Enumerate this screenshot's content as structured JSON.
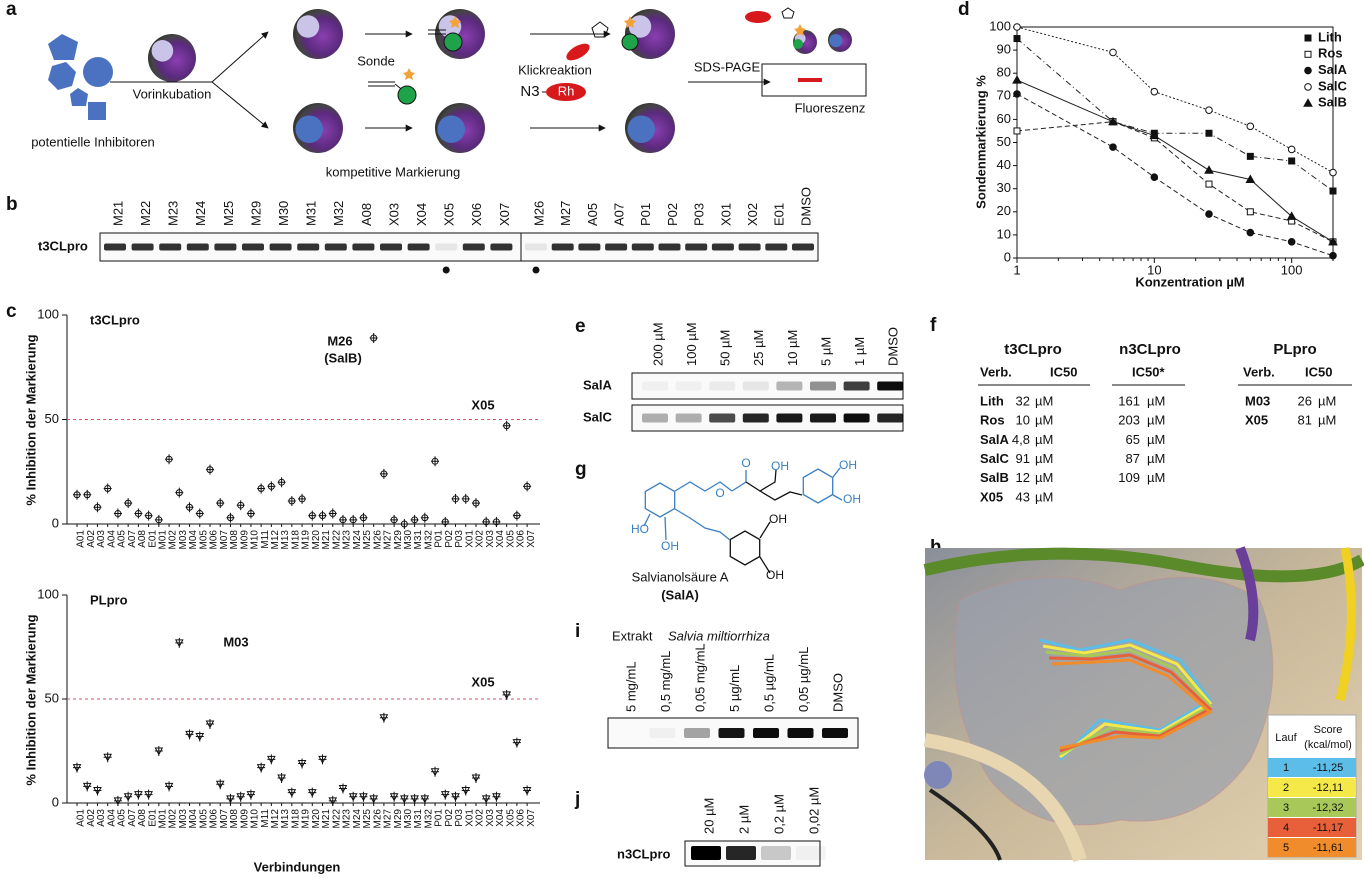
{
  "panels": {
    "a": {
      "letter": "a",
      "inhibitors": "potentielle Inhibitoren",
      "preincubation": "Vorinkubation",
      "probe": "Sonde",
      "click": "Klickreaktion",
      "azide": "N3",
      "dye": "Rh",
      "sds": "SDS-PAGE",
      "fluorescence": "Fluoreszenz",
      "competitive": "kompetitive Markierung"
    },
    "b": {
      "letter": "b",
      "protein": "t3CLpro",
      "lanes": [
        "M21",
        "M22",
        "M23",
        "M24",
        "M25",
        "M29",
        "M30",
        "M31",
        "M32",
        "A08",
        "X03",
        "X04",
        "X05",
        "X06",
        "X07",
        "M26",
        "M27",
        "A05",
        "A07",
        "P01",
        "P02",
        "P03",
        "X01",
        "X02",
        "E01",
        "DMSO"
      ]
    },
    "c": {
      "letter": "c",
      "ylabel": "% Inhibition der Markierung",
      "xlabel": "Verbindungen"
    },
    "d": {
      "letter": "d"
    },
    "e": {
      "letter": "e",
      "lanes": [
        "200 µM",
        "100 µM",
        "50 µM",
        "25 µM",
        "10 µM",
        "5 µM",
        "1 µM",
        "DMSO"
      ],
      "rows": [
        "SalA",
        "SalC"
      ]
    },
    "f": {
      "letter": "f",
      "tables": [
        {
          "title": "t3CLpro",
          "headers": [
            "Verb.",
            "IC50"
          ],
          "rows": [
            [
              "Lith",
              "32",
              "µM"
            ],
            [
              "Ros",
              "10",
              "µM"
            ],
            [
              "SalA",
              "4,8",
              "µM"
            ],
            [
              "SalC",
              "91",
              "µM"
            ],
            [
              "SalB",
              "12",
              "µM"
            ],
            [
              "X05",
              "43",
              "µM"
            ]
          ]
        },
        {
          "title": "n3CLpro",
          "headers": [
            "IC50*"
          ],
          "rows": [
            [
              "161",
              "µM"
            ],
            [
              "203",
              "µM"
            ],
            [
              "65",
              "µM"
            ],
            [
              "87",
              "µM"
            ],
            [
              "109",
              "µM"
            ]
          ]
        },
        {
          "title": "PLpro",
          "headers": [
            "Verb.",
            "IC50"
          ],
          "rows": [
            [
              "M03",
              "26",
              "µM"
            ],
            [
              "X05",
              "81",
              "µM"
            ]
          ]
        }
      ]
    },
    "g": {
      "letter": "g",
      "atoms": [
        "O",
        "OH",
        "OH",
        "OH",
        "O",
        "HO",
        "OH",
        "OH",
        "OH"
      ],
      "name": "Salvianolsäure A",
      "abbr": "(SalA)"
    },
    "h": {
      "letter": "h",
      "headers": [
        "Lauf",
        "Score",
        "(kcal/mol)"
      ],
      "rows": [
        [
          "1",
          "-11,25"
        ],
        [
          "2",
          "-12,11"
        ],
        [
          "3",
          "-12,32"
        ],
        [
          "4",
          "-11,17"
        ],
        [
          "5",
          "-11,61"
        ]
      ]
    },
    "i": {
      "letter": "i",
      "title": "Extrakt",
      "species": "Salvia miltiorrhiza",
      "lanes": [
        "5 mg/mL",
        "0,5 mg/mL",
        "0,05 mg/mL",
        "5 µg/mL",
        "0,5 µg/mL",
        "0,05 µg/mL",
        "DMSO"
      ]
    },
    "j": {
      "letter": "j",
      "protein": "n3CLpro",
      "lanes": [
        "20 µM",
        "2 µM",
        "0,2 µM",
        "0,02 µM"
      ]
    }
  },
  "chart_data": [
    {
      "type": "dot",
      "title": "t3CLpro",
      "marker": "circle",
      "categories": [
        "A01",
        "A02",
        "A03",
        "A04",
        "A05",
        "A07",
        "A08",
        "E01",
        "M01",
        "M02",
        "M03",
        "M04",
        "M05",
        "M06",
        "M07",
        "M08",
        "M09",
        "M10",
        "M11",
        "M12",
        "M13",
        "M18",
        "M19",
        "M20",
        "M21",
        "M22",
        "M23",
        "M24",
        "M25",
        "M26",
        "M27",
        "M29",
        "M30",
        "M31",
        "M32",
        "P01",
        "P02",
        "P03",
        "X01",
        "X02",
        "X03",
        "X04",
        "X05",
        "X06",
        "X07"
      ],
      "values": [
        14,
        14,
        8,
        17,
        5,
        10,
        5,
        4,
        2,
        31,
        15,
        8,
        5,
        26,
        10,
        3,
        9,
        5,
        17,
        18,
        20,
        11,
        12,
        4,
        4,
        5,
        2,
        2,
        3,
        89,
        24,
        2,
        0,
        2,
        3,
        30,
        1,
        12,
        12,
        10,
        1,
        1,
        47,
        4,
        18
      ],
      "ylim": [
        0,
        100
      ],
      "yticks": [
        0,
        50,
        100
      ],
      "threshold": 50,
      "annotations": [
        "M26",
        "(SalB)",
        "X05"
      ]
    },
    {
      "type": "dot",
      "title": "PLpro",
      "marker": "triangle",
      "categories": [
        "A01",
        "A02",
        "A03",
        "A04",
        "A05",
        "A07",
        "A08",
        "E01",
        "M01",
        "M02",
        "M03",
        "M04",
        "M05",
        "M06",
        "M07",
        "M08",
        "M09",
        "M10",
        "M11",
        "M12",
        "M13",
        "M18",
        "M19",
        "M20",
        "M21",
        "M22",
        "M23",
        "M24",
        "M25",
        "M26",
        "M27",
        "M29",
        "M30",
        "M31",
        "M32",
        "P01",
        "P02",
        "P03",
        "X01",
        "X02",
        "X03",
        "X04",
        "X05",
        "X06",
        "X07"
      ],
      "values": [
        17,
        8,
        6,
        22,
        1,
        3,
        4,
        4,
        25,
        8,
        77,
        33,
        32,
        38,
        9,
        2,
        3,
        4,
        17,
        21,
        12,
        5,
        19,
        5,
        21,
        1,
        7,
        3,
        3,
        2,
        41,
        3,
        2,
        2,
        2,
        15,
        4,
        3,
        6,
        12,
        2,
        3,
        52,
        29,
        6
      ],
      "ylim": [
        0,
        100
      ],
      "yticks": [
        0,
        50,
        100
      ],
      "threshold": 50,
      "annotations": [
        "M03",
        "X05"
      ]
    },
    {
      "type": "line",
      "xscale": "log",
      "xlabel": "Konzentration µM",
      "ylabel": "Sondenmarkierung %",
      "legend": "upper right",
      "x": [
        1,
        5,
        10,
        25,
        50,
        100,
        200
      ],
      "series": [
        {
          "name": "Lith",
          "marker": "square",
          "filled": true,
          "line_style": "dashdot",
          "values": [
            95,
            59,
            54,
            54,
            44,
            42,
            29
          ]
        },
        {
          "name": "Ros",
          "marker": "square",
          "filled": false,
          "line_style": "dashed",
          "values": [
            55,
            59,
            52,
            32,
            20,
            16,
            7
          ]
        },
        {
          "name": "SalA",
          "marker": "circle",
          "filled": true,
          "line_style": "dashed",
          "values": [
            71,
            48,
            35,
            19,
            11,
            7,
            1
          ]
        },
        {
          "name": "SalC",
          "marker": "circle",
          "filled": false,
          "line_style": "dotted",
          "values": [
            100,
            89,
            72,
            64,
            57,
            47,
            37
          ]
        },
        {
          "name": "SalB",
          "marker": "triangle",
          "filled": true,
          "line_style": "solid",
          "values": [
            77,
            59,
            53,
            38,
            34,
            18,
            7
          ]
        }
      ],
      "xlim": [
        1,
        200
      ],
      "ylim": [
        0,
        100
      ],
      "xticks": [
        1,
        10,
        100
      ],
      "yticks": [
        0,
        10,
        20,
        30,
        40,
        50,
        60,
        70,
        80,
        90,
        100
      ]
    }
  ]
}
